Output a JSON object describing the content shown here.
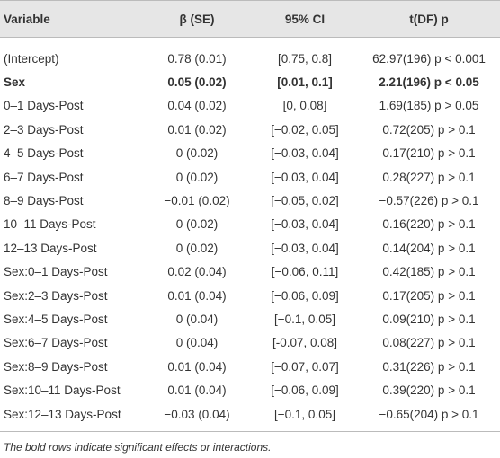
{
  "table": {
    "columns": [
      "Variable",
      "β (SE)",
      "95% CI",
      "t(DF) p"
    ],
    "rows": [
      {
        "cells": [
          "(Intercept)",
          "0.78 (0.01)",
          "[0.75, 0.8]",
          "62.97(196) p < 0.001"
        ]
      },
      {
        "cells": [
          "Sex",
          "0.05 (0.02)",
          "[0.01, 0.1]",
          "2.21(196) p < 0.05"
        ],
        "bold": true
      },
      {
        "cells": [
          "0–1 Days-Post",
          "0.04 (0.02)",
          "[0, 0.08]",
          "1.69(185) p > 0.05"
        ]
      },
      {
        "cells": [
          "2–3 Days-Post",
          "0.01 (0.02)",
          "[−0.02, 0.05]",
          "0.72(205) p > 0.1"
        ]
      },
      {
        "cells": [
          "4–5 Days-Post",
          "0 (0.02)",
          "[−0.03, 0.04]",
          "0.17(210) p > 0.1"
        ]
      },
      {
        "cells": [
          "6–7 Days-Post",
          "0 (0.02)",
          "[−0.03, 0.04]",
          "0.28(227) p > 0.1"
        ]
      },
      {
        "cells": [
          "8–9 Days-Post",
          "−0.01 (0.02)",
          "[−0.05, 0.02]",
          "−0.57(226) p > 0.1"
        ]
      },
      {
        "cells": [
          "10–11 Days-Post",
          "0 (0.02)",
          "[−0.03, 0.04]",
          "0.16(220) p > 0.1"
        ]
      },
      {
        "cells": [
          "12–13 Days-Post",
          "0 (0.02)",
          "[−0.03, 0.04]",
          "0.14(204) p > 0.1"
        ]
      },
      {
        "cells": [
          "Sex:0–1 Days-Post",
          "0.02 (0.04)",
          "[−0.06, 0.11]",
          "0.42(185) p > 0.1"
        ]
      },
      {
        "cells": [
          "Sex:2–3 Days-Post",
          "0.01 (0.04)",
          "[−0.06, 0.09]",
          "0.17(205) p > 0.1"
        ]
      },
      {
        "cells": [
          "Sex:4–5 Days-Post",
          "0 (0.04)",
          "[−0.1, 0.05]",
          "0.09(210) p > 0.1"
        ]
      },
      {
        "cells": [
          "Sex:6–7 Days-Post",
          "0 (0.04)",
          "[-0.07, 0.08]",
          "0.08(227) p > 0.1"
        ]
      },
      {
        "cells": [
          "Sex:8–9 Days-Post",
          "0.01 (0.04)",
          "[−0.07, 0.07]",
          "0.31(226) p > 0.1"
        ]
      },
      {
        "cells": [
          "Sex:10–11 Days-Post",
          "0.01 (0.04)",
          "[−0.06, 0.09]",
          "0.39(220) p > 0.1"
        ]
      },
      {
        "cells": [
          "Sex:12–13 Days-Post",
          "−0.03 (0.04)",
          "[−0.1, 0.05]",
          "−0.65(204) p > 0.1"
        ]
      }
    ]
  },
  "footnote": "The bold rows indicate significant effects or interactions."
}
